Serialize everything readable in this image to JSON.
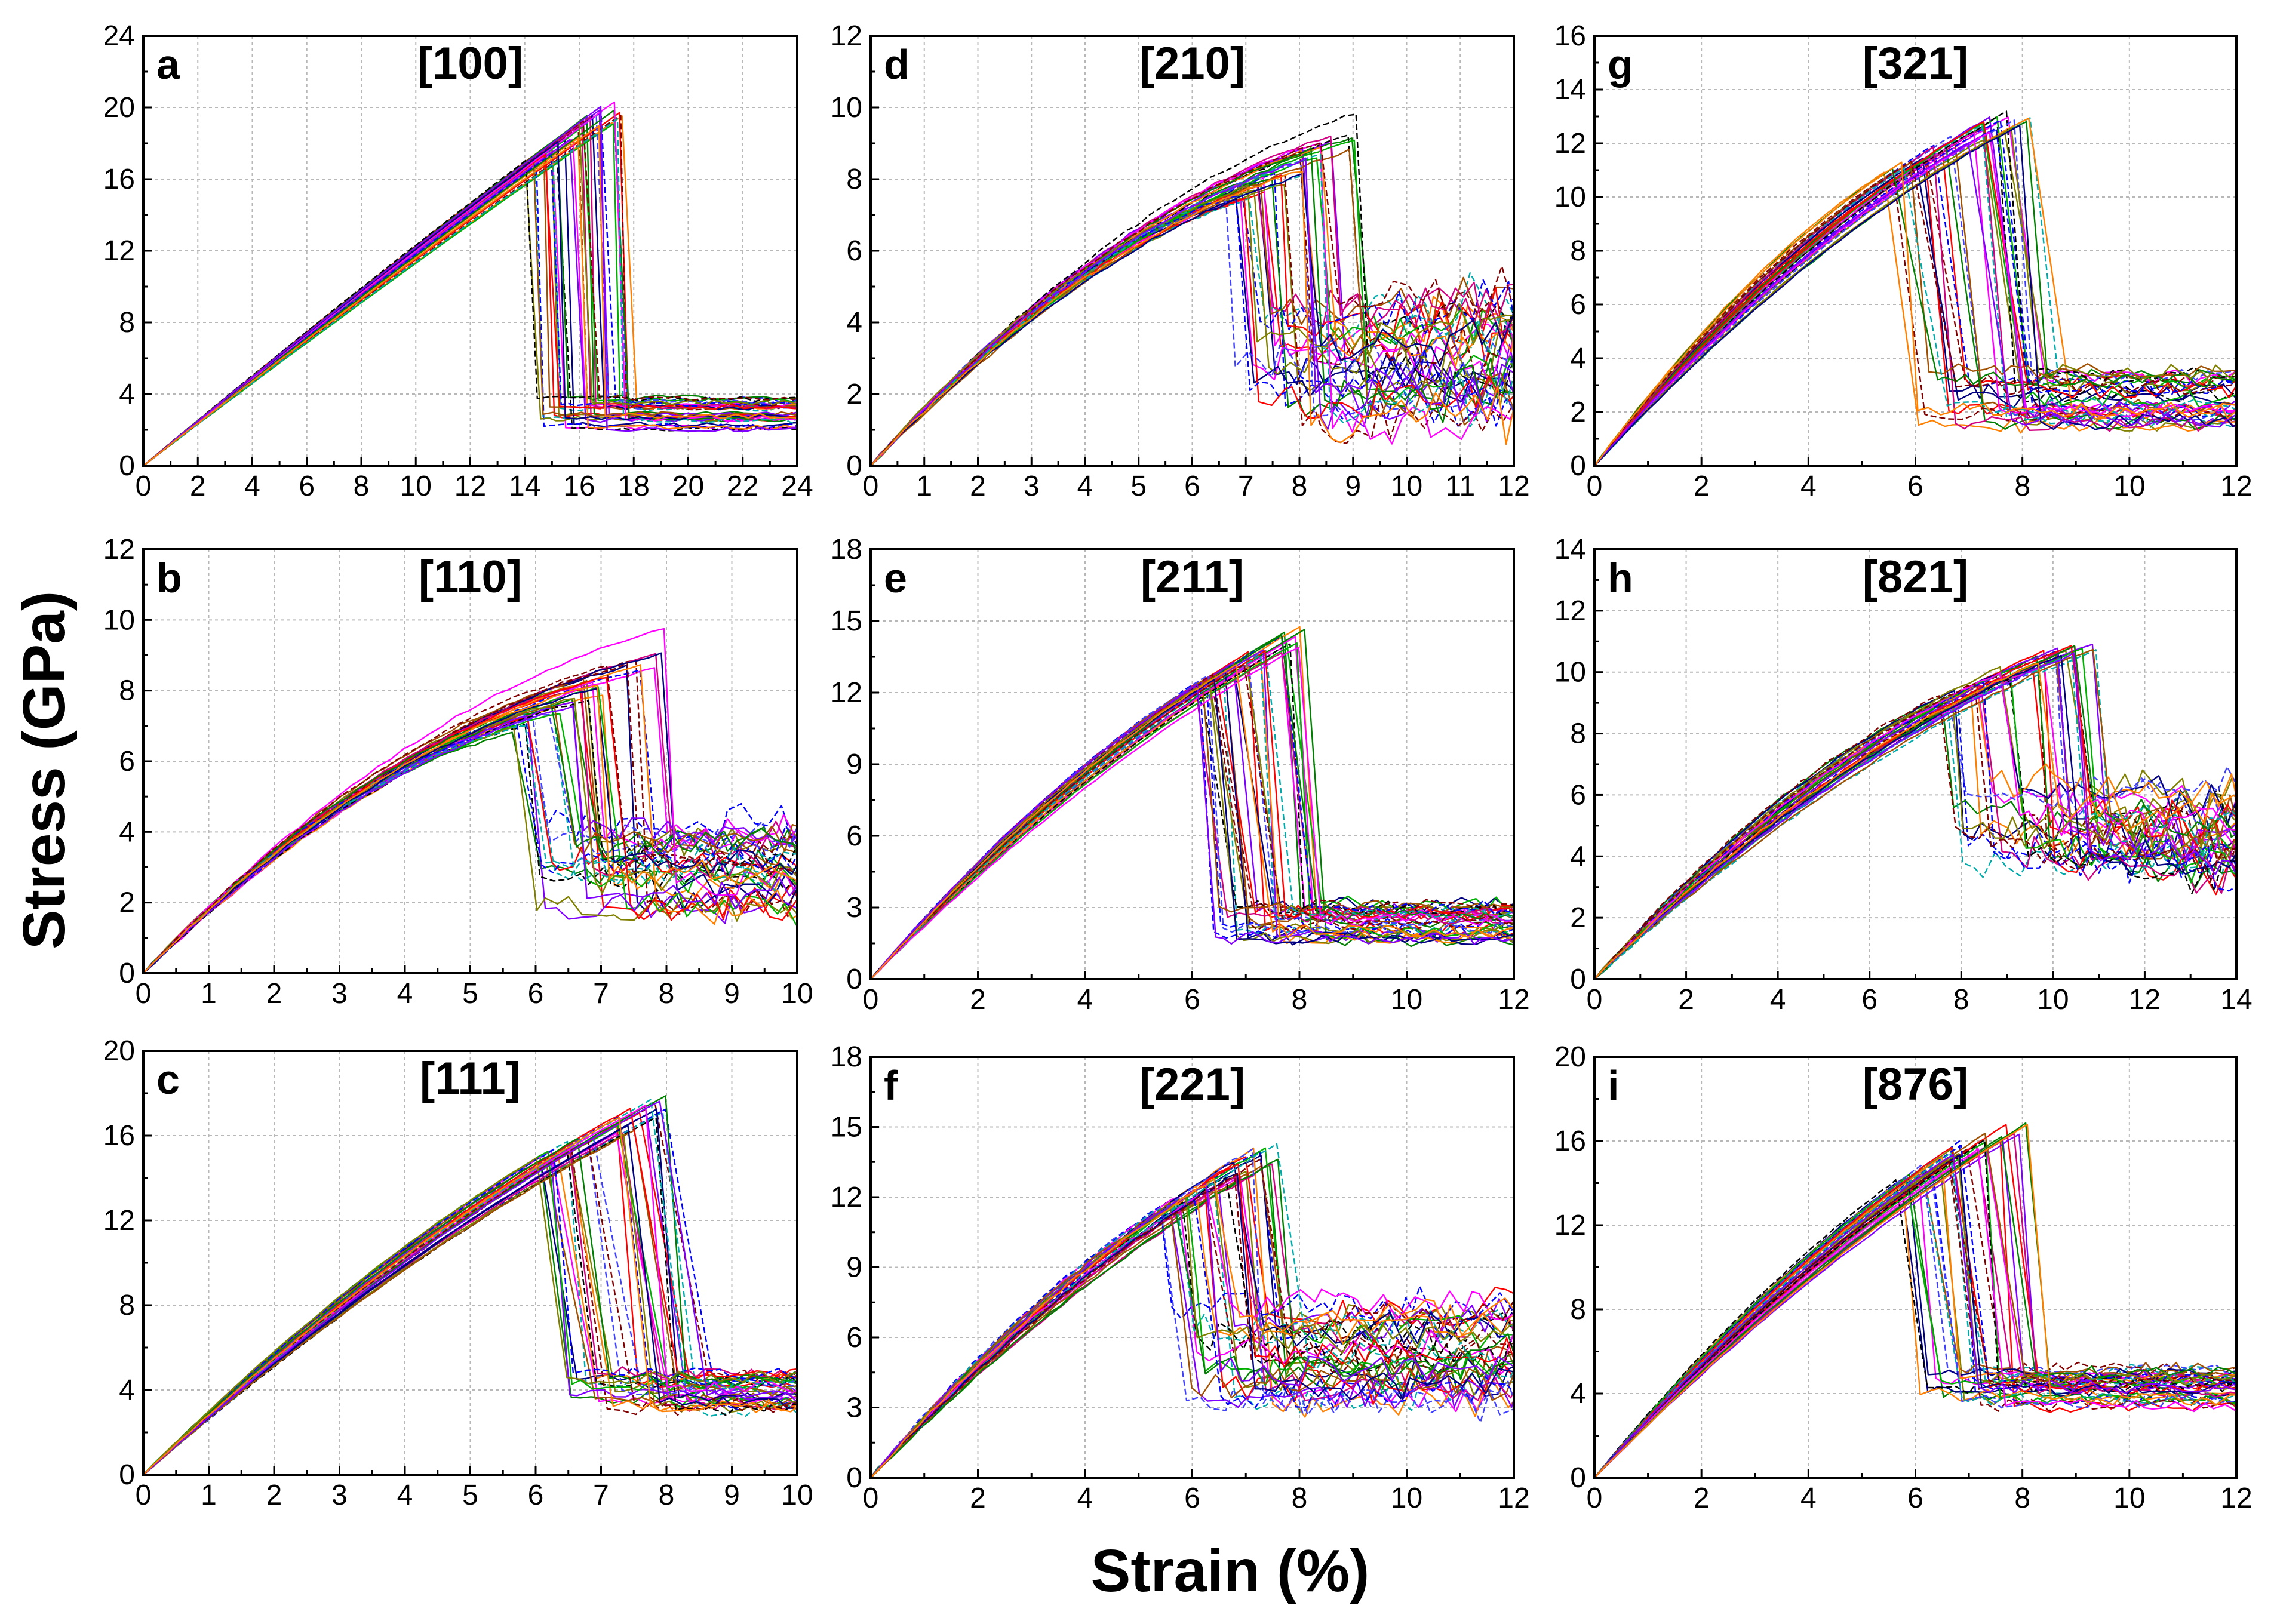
{
  "figure": {
    "ylabel": "Stress (GPa)",
    "xlabel": "Strain (%)"
  },
  "series_colors": [
    "#ff0000",
    "#0000ff",
    "#008000",
    "#ff00ff",
    "#00aaaa",
    "#808000",
    "#000080",
    "#800000",
    "#8000ff",
    "#ff8000",
    "#000000",
    "#d00080",
    "#00b000",
    "#4040ff",
    "#a05000"
  ],
  "chart_data": [
    {
      "type": "line",
      "panel": "a",
      "title": "[100]",
      "xlim": [
        0,
        24
      ],
      "ylim": [
        0,
        24
      ],
      "xticks": [
        0,
        2,
        4,
        6,
        8,
        10,
        12,
        14,
        16,
        18,
        20,
        22,
        24
      ],
      "yticks": [
        0,
        4,
        8,
        12,
        16,
        20,
        24
      ],
      "xtick_labels": [
        "0",
        "2",
        "4",
        "6",
        "8",
        "10",
        "12",
        "14",
        "16",
        "18",
        "20",
        "22",
        "24"
      ],
      "ytick_labels": [
        "0",
        "4",
        "8",
        "12",
        "16",
        "20",
        "24"
      ],
      "n_series": 40,
      "fracture_strain_range": [
        13.8,
        17.8
      ],
      "peak_stress_range": [
        15.5,
        21.2
      ],
      "residual_stress_range": [
        2.0,
        3.8
      ],
      "curvature": 0.05,
      "drop_width": 0.4,
      "noise": 0.15,
      "late_rise": 0
    },
    {
      "type": "line",
      "panel": "d",
      "title": "[210]",
      "xlim": [
        0,
        12
      ],
      "ylim": [
        0,
        12
      ],
      "xticks": [
        0,
        1,
        2,
        3,
        4,
        5,
        6,
        7,
        8,
        9,
        10,
        11,
        12
      ],
      "yticks": [
        0,
        2,
        4,
        6,
        8,
        10,
        12
      ],
      "xtick_labels": [
        "0",
        "1",
        "2",
        "3",
        "4",
        "5",
        "6",
        "7",
        "8",
        "9",
        "10",
        "11",
        "12"
      ],
      "ytick_labels": [
        "0",
        "2",
        "4",
        "6",
        "8",
        "10",
        "12"
      ],
      "n_series": 40,
      "fracture_strain_range": [
        6.5,
        9.2
      ],
      "peak_stress_range": [
        6.3,
        10.1
      ],
      "residual_stress_range": [
        1.0,
        4.5
      ],
      "curvature": 0.55,
      "drop_width": 0.25,
      "noise": 0.45,
      "late_rise": 1.6
    },
    {
      "type": "line",
      "panel": "g",
      "title": "[321]",
      "xlim": [
        0,
        12
      ],
      "ylim": [
        0,
        16
      ],
      "xticks": [
        0,
        2,
        4,
        6,
        8,
        10,
        12
      ],
      "yticks": [
        0,
        2,
        4,
        6,
        8,
        10,
        12,
        14,
        16
      ],
      "xtick_labels": [
        "0",
        "2",
        "4",
        "6",
        "8",
        "10",
        "12"
      ],
      "ytick_labels": [
        "0",
        "2",
        "4",
        "6",
        "8",
        "10",
        "12",
        "14",
        "16"
      ],
      "n_series": 40,
      "fracture_strain_range": [
        5.4,
        8.3
      ],
      "peak_stress_range": [
        10.0,
        13.9
      ],
      "residual_stress_range": [
        1.5,
        3.5
      ],
      "curvature": 0.35,
      "drop_width": 0.6,
      "noise": 0.3,
      "late_rise": 0
    },
    {
      "type": "line",
      "panel": "b",
      "title": "[110]",
      "xlim": [
        0,
        10
      ],
      "ylim": [
        0,
        12
      ],
      "xticks": [
        0,
        1,
        2,
        3,
        4,
        5,
        6,
        7,
        8,
        9,
        10
      ],
      "yticks": [
        0,
        2,
        4,
        6,
        8,
        10,
        12
      ],
      "xtick_labels": [
        "0",
        "1",
        "2",
        "3",
        "4",
        "5",
        "6",
        "7",
        "8",
        "9",
        "10"
      ],
      "ytick_labels": [
        "0",
        "2",
        "4",
        "6",
        "8",
        "10",
        "12"
      ],
      "n_series": 40,
      "fracture_strain_range": [
        5.6,
        8.0
      ],
      "peak_stress_range": [
        6.1,
        9.8
      ],
      "residual_stress_range": [
        1.7,
        4.2
      ],
      "curvature": 0.6,
      "drop_width": 0.3,
      "noise": 0.4,
      "late_rise": 0.5
    },
    {
      "type": "line",
      "panel": "e",
      "title": "[211]",
      "xlim": [
        0,
        12
      ],
      "ylim": [
        0,
        18
      ],
      "xticks": [
        0,
        2,
        4,
        6,
        8,
        10,
        12
      ],
      "yticks": [
        0,
        3,
        6,
        9,
        12,
        15,
        18
      ],
      "xtick_labels": [
        "0",
        "2",
        "4",
        "6",
        "8",
        "10",
        "12"
      ],
      "ytick_labels": [
        "0",
        "3",
        "6",
        "9",
        "12",
        "15",
        "18"
      ],
      "n_series": 40,
      "fracture_strain_range": [
        5.9,
        8.1
      ],
      "peak_stress_range": [
        11.5,
        15.0
      ],
      "residual_stress_range": [
        1.6,
        3.2
      ],
      "curvature": 0.3,
      "drop_width": 0.5,
      "noise": 0.3,
      "late_rise": 0
    },
    {
      "type": "line",
      "panel": "h",
      "title": "[821]",
      "xlim": [
        0,
        14
      ],
      "ylim": [
        0,
        14
      ],
      "xticks": [
        0,
        2,
        4,
        6,
        8,
        10,
        12,
        14
      ],
      "yticks": [
        0,
        2,
        4,
        6,
        8,
        10,
        12,
        14
      ],
      "xtick_labels": [
        "0",
        "2",
        "4",
        "6",
        "8",
        "10",
        "12",
        "14"
      ],
      "ytick_labels": [
        "0",
        "2",
        "4",
        "6",
        "8",
        "10",
        "12",
        "14"
      ],
      "n_series": 40,
      "fracture_strain_range": [
        7.5,
        11.0
      ],
      "peak_stress_range": [
        8.5,
        11.6
      ],
      "residual_stress_range": [
        3.5,
        6.5
      ],
      "curvature": 0.4,
      "drop_width": 0.35,
      "noise": 0.5,
      "late_rise": -1.5
    },
    {
      "type": "line",
      "panel": "c",
      "title": "[111]",
      "xlim": [
        0,
        10
      ],
      "ylim": [
        0,
        20
      ],
      "xticks": [
        0,
        1,
        2,
        3,
        4,
        5,
        6,
        7,
        8,
        9,
        10
      ],
      "yticks": [
        0,
        4,
        8,
        12,
        16,
        20
      ],
      "xtick_labels": [
        "0",
        "1",
        "2",
        "3",
        "4",
        "5",
        "6",
        "7",
        "8",
        "9",
        "10"
      ],
      "ytick_labels": [
        "0",
        "4",
        "8",
        "12",
        "16",
        "20"
      ],
      "n_series": 40,
      "fracture_strain_range": [
        5.8,
        8.0
      ],
      "peak_stress_range": [
        13.5,
        18.2
      ],
      "residual_stress_range": [
        3.0,
        4.8
      ],
      "curvature": 0.25,
      "drop_width": 0.55,
      "noise": 0.3,
      "late_rise": 0
    },
    {
      "type": "line",
      "panel": "f",
      "title": "[221]",
      "xlim": [
        0,
        12
      ],
      "ylim": [
        0,
        18
      ],
      "xticks": [
        0,
        2,
        4,
        6,
        8,
        10,
        12
      ],
      "yticks": [
        0,
        3,
        6,
        9,
        12,
        15,
        18
      ],
      "xtick_labels": [
        "0",
        "2",
        "4",
        "6",
        "8",
        "10",
        "12"
      ],
      "ytick_labels": [
        "0",
        "3",
        "6",
        "9",
        "12",
        "15",
        "18"
      ],
      "n_series": 40,
      "fracture_strain_range": [
        5.4,
        7.6
      ],
      "peak_stress_range": [
        10.5,
        14.8
      ],
      "residual_stress_range": [
        3.0,
        7.5
      ],
      "curvature": 0.3,
      "drop_width": 0.4,
      "noise": 0.7,
      "late_rise": 1.0
    },
    {
      "type": "line",
      "panel": "i",
      "title": "[876]",
      "xlim": [
        0,
        12
      ],
      "ylim": [
        0,
        20
      ],
      "xticks": [
        0,
        2,
        4,
        6,
        8,
        10,
        12
      ],
      "yticks": [
        0,
        4,
        8,
        12,
        16,
        20
      ],
      "xtick_labels": [
        "0",
        "2",
        "4",
        "6",
        "8",
        "10",
        "12"
      ],
      "ytick_labels": [
        "0",
        "4",
        "8",
        "12",
        "16",
        "20"
      ],
      "n_series": 40,
      "fracture_strain_range": [
        5.6,
        8.1
      ],
      "peak_stress_range": [
        13.0,
        17.9
      ],
      "residual_stress_range": [
        3.2,
        5.2
      ],
      "curvature": 0.25,
      "drop_width": 0.5,
      "noise": 0.3,
      "late_rise": 0
    }
  ]
}
